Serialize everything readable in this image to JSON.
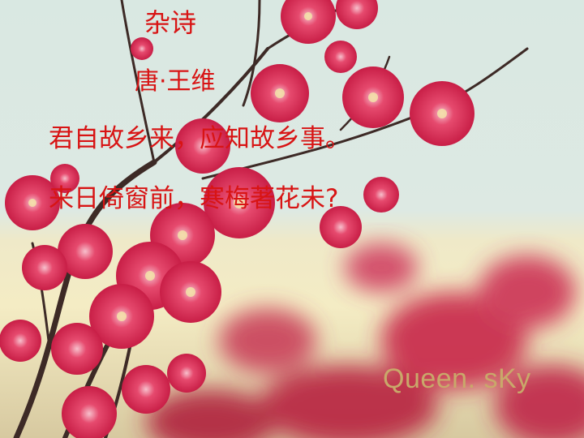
{
  "poem": {
    "title": "杂诗",
    "author": "唐·王维",
    "lines": [
      "君自故乡来，应知故乡事。",
      "来日倚窗前，寒梅著花未?"
    ]
  },
  "watermark": "Queen. sKy",
  "colors": {
    "text": "#d81414",
    "watermark": "#c9a86a",
    "blossom": "#d8284f",
    "sky": "#d9e8e2"
  }
}
